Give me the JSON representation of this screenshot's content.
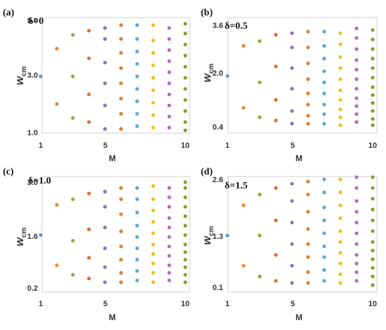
{
  "figure": {
    "panels": [
      {
        "id": "a",
        "panel_label": "(a)",
        "delta_label": "δ=0",
        "xlabel": "M",
        "ylabel": "w",
        "ylabel_sub": "cm",
        "xticks": [
          "1",
          "5",
          "10"
        ],
        "yticks": [
          "1.0",
          "3.0",
          "5.0"
        ]
      },
      {
        "id": "b",
        "panel_label": "(b)",
        "delta_label": "δ=0.5",
        "xlabel": "M",
        "ylabel": "w",
        "ylabel_sub": "cm",
        "xticks": [
          "1",
          "5",
          "10"
        ],
        "yticks": [
          "0.4",
          "2.0",
          "3.6"
        ]
      },
      {
        "id": "c",
        "panel_label": "(c)",
        "delta_label": "δ=1.0",
        "xlabel": "M",
        "ylabel": "w",
        "ylabel_sub": "cm",
        "xticks": [
          "1",
          "5",
          "10"
        ],
        "yticks": [
          "0.2",
          "1.6",
          "3.0"
        ]
      },
      {
        "id": "d",
        "panel_label": "(d)",
        "delta_label": "δ=1.5",
        "xlabel": "M",
        "ylabel": "w",
        "ylabel_sub": "cm",
        "xticks": [
          "1",
          "5",
          "10"
        ],
        "yticks": [
          "0.1",
          "1.3",
          "2.6"
        ]
      }
    ]
  },
  "chart_data": [
    {
      "type": "scatter",
      "panel": "(a)",
      "annotation": "δ=0",
      "xlabel": "M",
      "ylabel": "w_cm",
      "xlim": [
        1,
        10
      ],
      "ylim": [
        1.0,
        5.0
      ],
      "x_ticks": [
        1,
        5,
        10
      ],
      "y_ticks": [
        1.0,
        3.0,
        5.0
      ],
      "colors_by_M": {
        "1": "#5c9ad6",
        "2": "#ee8a34",
        "3": "#9aa639",
        "4": "#e06a2c",
        "5": "#8f6fc4",
        "6": "#e07d2f",
        "7": "#59a7d9",
        "8": "#f2bd15",
        "9": "#b767c0",
        "10": "#8b9b27"
      },
      "points": [
        {
          "x": 1,
          "y": [
            3.0
          ]
        },
        {
          "x": 2,
          "y": [
            2.0,
            4.0
          ]
        },
        {
          "x": 3,
          "y": [
            1.5,
            3.0,
            4.5
          ]
        },
        {
          "x": 4,
          "y": [
            1.35,
            2.35,
            3.65,
            4.65
          ]
        },
        {
          "x": 5,
          "y": [
            1.1,
            1.95,
            2.75,
            3.5,
            4.35,
            4.75
          ]
        },
        {
          "x": 6,
          "y": [
            1.1,
            1.65,
            2.2,
            2.75,
            3.3,
            3.85,
            4.35,
            4.85
          ]
        },
        {
          "x": 7,
          "y": [
            1.2,
            1.65,
            2.1,
            2.55,
            3.0,
            3.45,
            3.9,
            4.35,
            4.85
          ]
        },
        {
          "x": 8,
          "y": [
            1.15,
            1.6,
            2.05,
            2.5,
            2.95,
            3.4,
            3.85,
            4.3,
            4.85
          ]
        },
        {
          "x": 9,
          "y": [
            1.15,
            1.55,
            1.95,
            2.35,
            2.75,
            3.15,
            3.55,
            3.95,
            4.35,
            4.75
          ]
        },
        {
          "x": 10,
          "y": [
            1.05,
            1.35,
            1.75,
            2.15,
            2.55,
            2.95,
            3.35,
            3.75,
            4.15,
            4.55,
            4.9
          ]
        }
      ]
    },
    {
      "type": "scatter",
      "panel": "(b)",
      "annotation": "δ=0.5",
      "xlabel": "M",
      "ylabel": "w_cm",
      "xlim": [
        1,
        10
      ],
      "ylim": [
        0.4,
        3.6
      ],
      "x_ticks": [
        1,
        5,
        10
      ],
      "y_ticks": [
        0.4,
        2.0,
        3.6
      ],
      "colors_by_M": {
        "1": "#5c9ad6",
        "2": "#ee8a34",
        "3": "#9aa639",
        "4": "#e06a2c",
        "5": "#8f6fc4",
        "6": "#e07d2f",
        "7": "#59a7d9",
        "8": "#f2bd15",
        "9": "#b767c0",
        "10": "#8b9b27"
      },
      "points": [
        {
          "x": 1,
          "y": [
            2.0
          ]
        },
        {
          "x": 2,
          "y": [
            1.0,
            2.95
          ]
        },
        {
          "x": 3,
          "y": [
            0.7,
            1.8,
            3.1
          ]
        },
        {
          "x": 4,
          "y": [
            0.6,
            1.25,
            2.3,
            3.3
          ]
        },
        {
          "x": 5,
          "y": [
            0.5,
            0.9,
            1.6,
            2.25,
            2.9,
            3.35
          ]
        },
        {
          "x": 6,
          "y": [
            0.5,
            0.75,
            1.1,
            1.45,
            1.9,
            2.4,
            2.9,
            3.4
          ]
        },
        {
          "x": 7,
          "y": [
            0.5,
            0.8,
            1.1,
            1.45,
            1.8,
            2.15,
            2.55,
            2.95,
            3.4
          ]
        },
        {
          "x": 8,
          "y": [
            0.45,
            0.7,
            0.95,
            1.25,
            1.55,
            1.9,
            2.25,
            2.6,
            3.0,
            3.35
          ]
        },
        {
          "x": 9,
          "y": [
            0.55,
            0.8,
            1.05,
            1.3,
            1.6,
            1.9,
            2.2,
            2.5,
            2.85,
            3.2,
            3.5
          ]
        },
        {
          "x": 10,
          "y": [
            0.45,
            0.65,
            0.9,
            1.15,
            1.4,
            1.65,
            1.95,
            2.25,
            2.55,
            2.85,
            3.15,
            3.45
          ]
        }
      ]
    },
    {
      "type": "scatter",
      "panel": "(c)",
      "annotation": "δ=1.0",
      "xlabel": "M",
      "ylabel": "w_cm",
      "xlim": [
        1,
        10
      ],
      "ylim": [
        0.2,
        3.0
      ],
      "x_ticks": [
        1,
        5,
        10
      ],
      "y_ticks": [
        0.2,
        1.6,
        3.0
      ],
      "colors_by_M": {
        "1": "#5c9ad6",
        "2": "#ee8a34",
        "3": "#9aa639",
        "4": "#e06a2c",
        "5": "#8f6fc4",
        "6": "#e07d2f",
        "7": "#59a7d9",
        "8": "#f2bd15",
        "9": "#b767c0",
        "10": "#8b9b27"
      },
      "points": [
        {
          "x": 1,
          "y": [
            1.6
          ]
        },
        {
          "x": 2,
          "y": [
            0.8,
            2.4
          ]
        },
        {
          "x": 3,
          "y": [
            0.55,
            1.45,
            2.55
          ]
        },
        {
          "x": 4,
          "y": [
            0.45,
            1.0,
            1.75,
            2.7
          ]
        },
        {
          "x": 5,
          "y": [
            0.35,
            0.75,
            1.25,
            1.8,
            2.35,
            2.75
          ]
        },
        {
          "x": 6,
          "y": [
            0.35,
            0.6,
            0.95,
            1.3,
            1.7,
            2.15,
            2.55,
            2.85
          ]
        },
        {
          "x": 7,
          "y": [
            0.4,
            0.65,
            0.95,
            1.25,
            1.55,
            1.85,
            2.2,
            2.55,
            2.85
          ]
        },
        {
          "x": 8,
          "y": [
            0.35,
            0.6,
            0.85,
            1.1,
            1.35,
            1.65,
            1.95,
            2.25,
            2.55,
            2.9
          ]
        },
        {
          "x": 9,
          "y": [
            0.4,
            0.6,
            0.8,
            1.05,
            1.3,
            1.55,
            1.8,
            2.05,
            2.35,
            2.6,
            2.85
          ]
        },
        {
          "x": 10,
          "y": [
            0.35,
            0.55,
            0.75,
            0.95,
            1.15,
            1.35,
            1.6,
            1.85,
            2.1,
            2.35,
            2.6,
            2.85,
            3.0
          ]
        }
      ]
    },
    {
      "type": "scatter",
      "panel": "(d)",
      "annotation": "δ=1.5",
      "xlabel": "M",
      "ylabel": "w_cm",
      "xlim": [
        1,
        10
      ],
      "ylim": [
        0.1,
        2.6
      ],
      "x_ticks": [
        1,
        5,
        10
      ],
      "y_ticks": [
        0.1,
        1.3,
        2.6
      ],
      "colors_by_M": {
        "1": "#5c9ad6",
        "2": "#ee8a34",
        "3": "#9aa639",
        "4": "#e06a2c",
        "5": "#8f6fc4",
        "6": "#e07d2f",
        "7": "#59a7d9",
        "8": "#f2bd15",
        "9": "#b767c0",
        "10": "#8b9b27"
      },
      "points": [
        {
          "x": 1,
          "y": [
            1.3
          ]
        },
        {
          "x": 2,
          "y": [
            0.6,
            2.0
          ]
        },
        {
          "x": 3,
          "y": [
            0.35,
            1.3,
            2.25
          ]
        },
        {
          "x": 4,
          "y": [
            0.25,
            0.85,
            1.65,
            2.4
          ]
        },
        {
          "x": 5,
          "y": [
            0.2,
            0.6,
            1.1,
            1.6,
            2.1,
            2.5
          ]
        },
        {
          "x": 6,
          "y": [
            0.2,
            0.45,
            0.8,
            1.1,
            1.45,
            1.85,
            2.25,
            2.55
          ]
        },
        {
          "x": 7,
          "y": [
            0.25,
            0.5,
            0.8,
            1.05,
            1.35,
            1.65,
            1.95,
            2.3,
            2.6
          ]
        },
        {
          "x": 8,
          "y": [
            0.2,
            0.4,
            0.65,
            0.9,
            1.15,
            1.4,
            1.7,
            2.0,
            2.3,
            2.6
          ]
        },
        {
          "x": 9,
          "y": [
            0.25,
            0.45,
            0.65,
            0.85,
            1.1,
            1.35,
            1.6,
            1.85,
            2.1,
            2.4,
            2.65
          ]
        },
        {
          "x": 10,
          "y": [
            0.15,
            0.35,
            0.55,
            0.75,
            0.95,
            1.15,
            1.4,
            1.65,
            1.9,
            2.15,
            2.4,
            2.65
          ]
        }
      ]
    }
  ]
}
